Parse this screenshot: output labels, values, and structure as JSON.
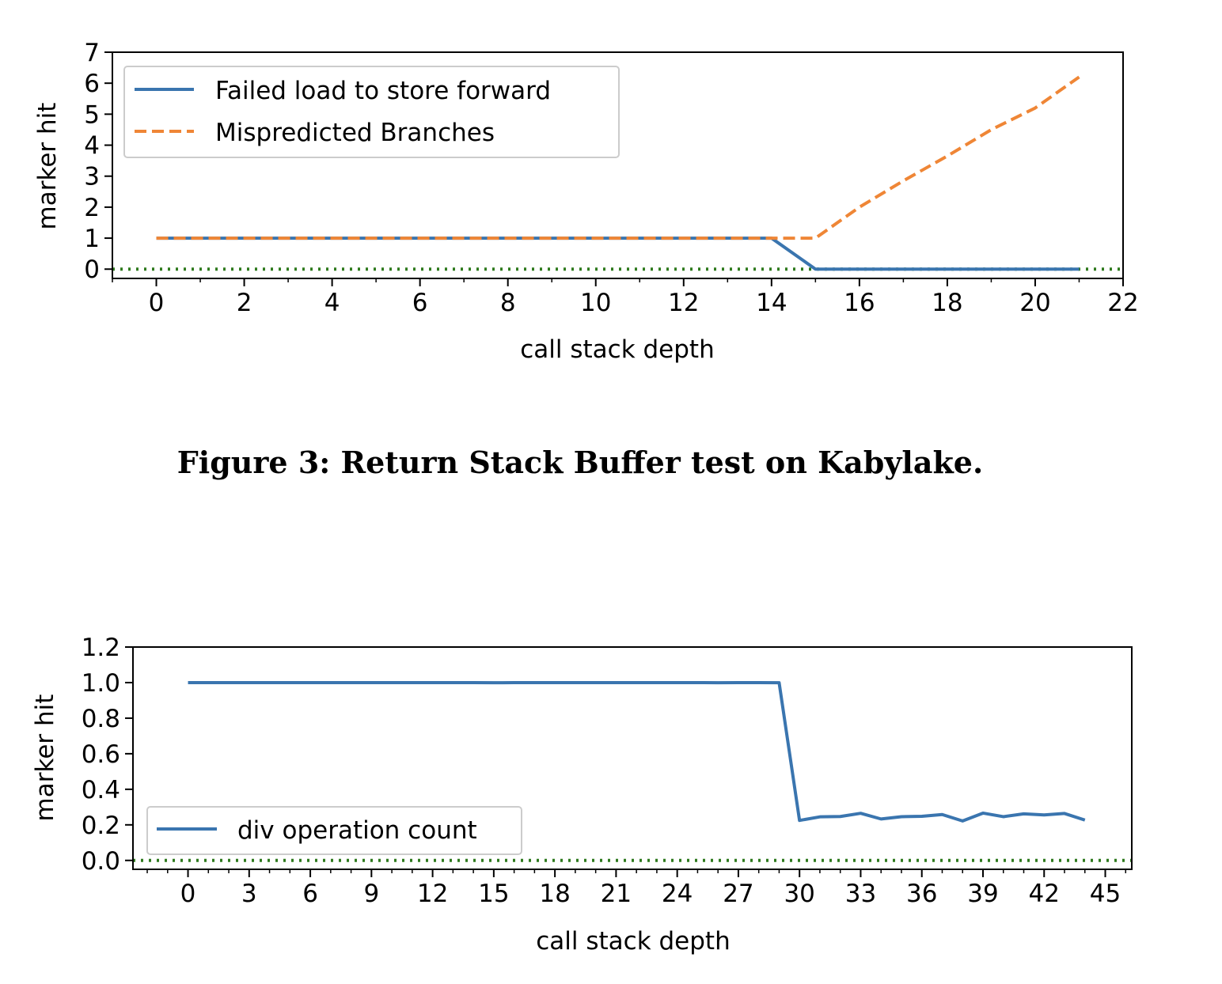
{
  "caption": "Figure 3: Return Stack Buffer test on Kabylake.",
  "chart_data": [
    {
      "type": "line",
      "title": "",
      "xlabel": "call stack depth",
      "ylabel": "marker hit",
      "xlim": [
        -1,
        22
      ],
      "ylim": [
        -0.3,
        7
      ],
      "xticks": [
        0,
        2,
        4,
        6,
        8,
        10,
        12,
        14,
        16,
        18,
        20,
        22
      ],
      "yticks": [
        0,
        1,
        2,
        3,
        4,
        5,
        6,
        7
      ],
      "legend_position": "top-left",
      "reference_line": {
        "y": 0,
        "style": "dotted",
        "color": "#2f7a1e"
      },
      "series": [
        {
          "name": "Failed load to store forward",
          "style": "solid",
          "color": "#3a75af",
          "x": [
            0,
            1,
            2,
            3,
            4,
            5,
            6,
            7,
            8,
            9,
            10,
            11,
            12,
            13,
            14,
            15,
            16,
            17,
            18,
            19,
            20,
            21
          ],
          "y": [
            1,
            1,
            1,
            1,
            1,
            1,
            1,
            1,
            1,
            1,
            1,
            1,
            1,
            1,
            1,
            0,
            0,
            0,
            0,
            0,
            0,
            0
          ]
        },
        {
          "name": "Mispredicted Branches",
          "style": "dashed",
          "color": "#ef8636",
          "x": [
            0,
            1,
            2,
            3,
            4,
            5,
            6,
            7,
            8,
            9,
            10,
            11,
            12,
            13,
            14,
            15,
            16,
            17,
            18,
            19,
            20,
            21
          ],
          "y": [
            1,
            1,
            1,
            1,
            1,
            1,
            1,
            1,
            1,
            1,
            1,
            1,
            1,
            1,
            1,
            1,
            2,
            2.85,
            3.65,
            4.5,
            5.2,
            6.2
          ]
        }
      ]
    },
    {
      "type": "line",
      "title": "",
      "xlabel": "call stack depth",
      "ylabel": "marker hit",
      "xlim": [
        -2.7,
        46.3
      ],
      "ylim": [
        -0.05,
        1.2
      ],
      "xticks": [
        0,
        3,
        6,
        9,
        12,
        15,
        18,
        21,
        24,
        27,
        30,
        33,
        36,
        39,
        42,
        45
      ],
      "yticks": [
        "0.0",
        "0.2",
        "0.4",
        "0.6",
        "0.8",
        "1.0",
        "1.2"
      ],
      "legend_position": "bottom-left",
      "reference_line": {
        "y": 0,
        "style": "dotted",
        "color": "#2f7a1e"
      },
      "series": [
        {
          "name": "div operation count",
          "style": "solid",
          "color": "#3a75af",
          "x": [
            0,
            1,
            2,
            3,
            4,
            5,
            6,
            7,
            8,
            9,
            10,
            11,
            12,
            13,
            14,
            15,
            16,
            17,
            18,
            19,
            20,
            21,
            22,
            23,
            24,
            25,
            26,
            27,
            28,
            29,
            30,
            31,
            32,
            33,
            34,
            35,
            36,
            37,
            38,
            39,
            40,
            41,
            42,
            43,
            44
          ],
          "y": [
            1,
            1,
            1,
            1,
            1,
            1,
            1,
            1,
            1,
            1,
            1,
            1,
            1,
            1,
            1,
            0.999,
            1,
            1,
            1,
            1,
            1,
            1,
            1,
            1,
            1,
            1,
            0.999,
            1,
            1,
            0.999,
            0.225,
            0.245,
            0.247,
            0.265,
            0.233,
            0.246,
            0.248,
            0.258,
            0.222,
            0.266,
            0.246,
            0.262,
            0.256,
            0.264,
            0.227
          ]
        }
      ]
    }
  ]
}
